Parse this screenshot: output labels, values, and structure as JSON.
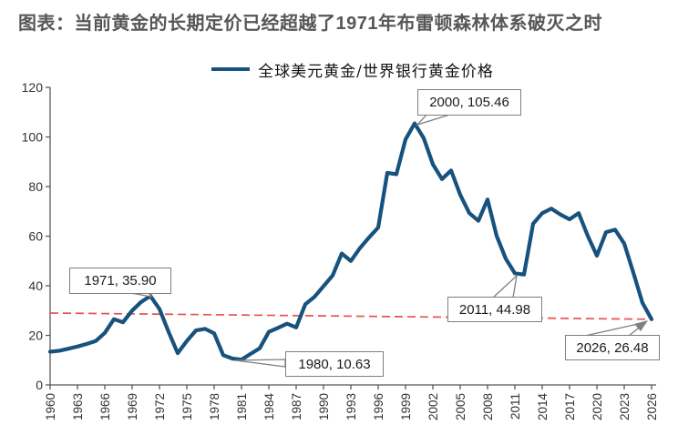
{
  "title": "图表：当前黄金的长期定价已经超越了1971年布雷顿森林体系破灭之时",
  "legend": {
    "label": "全球美元黄金/世界银行黄金价格"
  },
  "colors": {
    "series_line": "#17527E",
    "reference_dashed": "#E8534E",
    "title_text": "#575757",
    "axis_line": "#595959",
    "tick_text": "#333333",
    "callout_border": "#7f7f7f"
  },
  "chart_data": {
    "type": "line",
    "title": "图表：当前黄金的长期定价已经超越了1971年布雷顿森林体系破灭之时",
    "xlabel": "",
    "ylabel": "",
    "ylim": [
      0,
      120
    ],
    "yticks": [
      0,
      20,
      40,
      60,
      80,
      100,
      120
    ],
    "x_range": [
      1960,
      2026
    ],
    "xtick_step": 3,
    "xtick_labels": [
      "1960",
      "1963",
      "1966",
      "1969",
      "1972",
      "1975",
      "1978",
      "1981",
      "1984",
      "1987",
      "1990",
      "1993",
      "1996",
      "1999",
      "2002",
      "2005",
      "2008",
      "2011",
      "2014",
      "2017",
      "2020",
      "2023",
      "2026"
    ],
    "grid": false,
    "legend_position": "top",
    "x": [
      1960,
      1961,
      1962,
      1963,
      1964,
      1965,
      1966,
      1967,
      1968,
      1969,
      1970,
      1971,
      1972,
      1973,
      1974,
      1975,
      1976,
      1977,
      1978,
      1979,
      1980,
      1981,
      1982,
      1983,
      1984,
      1985,
      1986,
      1987,
      1988,
      1989,
      1990,
      1991,
      1992,
      1993,
      1994,
      1995,
      1996,
      1997,
      1998,
      1999,
      2000,
      2001,
      2002,
      2003,
      2004,
      2005,
      2006,
      2007,
      2008,
      2009,
      2010,
      2011,
      2012,
      2013,
      2014,
      2015,
      2016,
      2017,
      2018,
      2019,
      2020,
      2021,
      2022,
      2023,
      2024,
      2025,
      2026
    ],
    "series": [
      {
        "name": "全球美元黄金/世界银行黄金价格",
        "values": [
          13.4,
          13.8,
          14.6,
          15.5,
          16.5,
          17.7,
          21.0,
          26.5,
          25.3,
          30.0,
          33.5,
          35.9,
          30.6,
          21.4,
          12.8,
          17.7,
          22.0,
          22.6,
          20.8,
          12.0,
          10.63,
          10.2,
          12.5,
          14.8,
          21.4,
          23.0,
          24.7,
          23.2,
          32.5,
          35.5,
          39.8,
          44.1,
          53.0,
          50.0,
          55.2,
          59.5,
          63.5,
          85.5,
          85.0,
          99.0,
          105.46,
          99.5,
          89.0,
          83.0,
          86.5,
          76.7,
          69.3,
          66.2,
          74.8,
          60.1,
          50.9,
          44.98,
          44.5,
          65.0,
          69.3,
          71.1,
          68.7,
          66.8,
          69.3,
          60.1,
          52.1,
          61.6,
          62.6,
          57.0,
          45.3,
          33.1,
          26.48
        ]
      }
    ],
    "reference_line": {
      "style": "dashed",
      "start": {
        "year": 1960,
        "value": 29.0
      },
      "end": {
        "year": 2026,
        "value": 26.48
      }
    },
    "annotations": [
      {
        "label": "1971, 35.90",
        "year": 1971,
        "value": 35.9
      },
      {
        "label": "1980, 10.63",
        "year": 1980,
        "value": 10.63
      },
      {
        "label": "2000, 105.46",
        "year": 2000,
        "value": 105.46
      },
      {
        "label": "2011, 44.98",
        "year": 2011,
        "value": 44.98
      },
      {
        "label": "2026, 26.48",
        "year": 2026,
        "value": 26.48
      }
    ]
  }
}
